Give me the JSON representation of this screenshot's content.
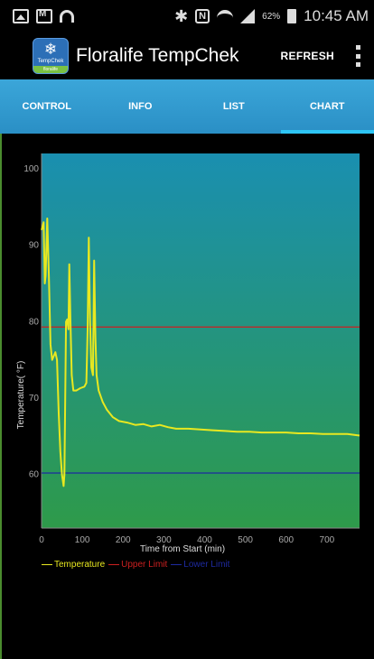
{
  "status_bar": {
    "battery_percent": "62%",
    "time": "10:45 AM",
    "icons": [
      "gallery-icon",
      "mail-icon",
      "headset-icon",
      "bluetooth-icon",
      "nfc-icon",
      "wifi-icon",
      "signal-icon",
      "battery-icon"
    ]
  },
  "action_bar": {
    "logo_text": "TempChek",
    "logo_brand": "floralife",
    "title": "Floralife TempChek",
    "refresh_label": "REFRESH"
  },
  "tabs": [
    {
      "label": "CONTROL",
      "active": false
    },
    {
      "label": "INFO",
      "active": false
    },
    {
      "label": "LIST",
      "active": false
    },
    {
      "label": "CHART",
      "active": true
    }
  ],
  "chart_data": {
    "type": "line",
    "xlabel": "Time from Start (min)",
    "ylabel": "Temperature( °F)",
    "xlim": [
      0,
      780
    ],
    "ylim": [
      53,
      102
    ],
    "x_ticks": [
      0,
      100,
      200,
      300,
      400,
      500,
      600,
      700
    ],
    "y_ticks": [
      60,
      70,
      80,
      90,
      100
    ],
    "grid": false,
    "legend_position": "bottom",
    "background_gradient": [
      "#1a8fb0",
      "#2e9a4a"
    ],
    "series": [
      {
        "name": "Temperature",
        "color": "#e8e820",
        "points": [
          [
            0,
            92
          ],
          [
            5,
            93
          ],
          [
            8,
            85
          ],
          [
            10,
            86
          ],
          [
            14,
            93.5
          ],
          [
            18,
            86
          ],
          [
            22,
            77
          ],
          [
            26,
            75
          ],
          [
            30,
            75.5
          ],
          [
            34,
            76
          ],
          [
            38,
            75
          ],
          [
            42,
            68
          ],
          [
            46,
            63
          ],
          [
            50,
            60
          ],
          [
            54,
            58.5
          ],
          [
            56,
            60
          ],
          [
            58,
            70
          ],
          [
            60,
            80
          ],
          [
            63,
            80.3
          ],
          [
            66,
            79
          ],
          [
            68,
            87.5
          ],
          [
            71,
            80
          ],
          [
            74,
            73
          ],
          [
            78,
            71
          ],
          [
            85,
            71
          ],
          [
            95,
            71.3
          ],
          [
            105,
            71.5
          ],
          [
            110,
            72
          ],
          [
            113,
            79
          ],
          [
            116,
            91
          ],
          [
            119,
            80
          ],
          [
            122,
            74
          ],
          [
            126,
            73
          ],
          [
            129,
            88
          ],
          [
            132,
            78
          ],
          [
            135,
            73
          ],
          [
            140,
            71
          ],
          [
            150,
            69.5
          ],
          [
            160,
            68.5
          ],
          [
            175,
            67.5
          ],
          [
            190,
            67
          ],
          [
            210,
            66.8
          ],
          [
            230,
            66.5
          ],
          [
            250,
            66.6
          ],
          [
            270,
            66.3
          ],
          [
            290,
            66.5
          ],
          [
            310,
            66.2
          ],
          [
            330,
            66
          ],
          [
            360,
            66
          ],
          [
            390,
            65.9
          ],
          [
            420,
            65.8
          ],
          [
            450,
            65.7
          ],
          [
            480,
            65.6
          ],
          [
            510,
            65.6
          ],
          [
            540,
            65.5
          ],
          [
            570,
            65.5
          ],
          [
            600,
            65.5
          ],
          [
            630,
            65.4
          ],
          [
            660,
            65.4
          ],
          [
            690,
            65.3
          ],
          [
            720,
            65.3
          ],
          [
            750,
            65.3
          ],
          [
            780,
            65.1
          ]
        ]
      },
      {
        "name": "Upper Limit",
        "color": "#cc2020",
        "value": 79.3
      },
      {
        "name": "Lower Limit",
        "color": "#1e2aa0",
        "value": 60.2
      }
    ]
  }
}
